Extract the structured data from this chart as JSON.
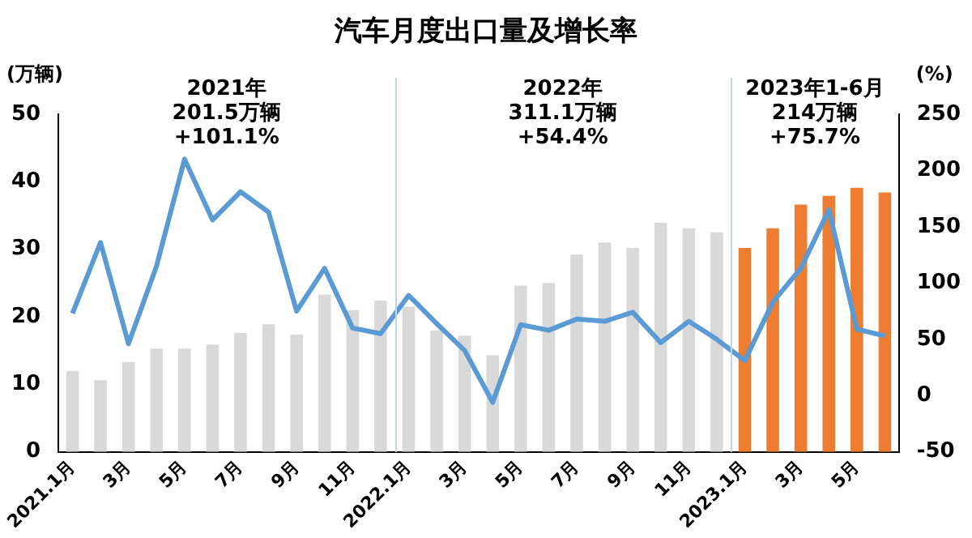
{
  "chart_data": {
    "type": "bar",
    "title": "汽车月度出口量及增长率",
    "ylabel": "(万辆)",
    "y2label": "(%)",
    "categories": [
      "2021.1月",
      null,
      "3月",
      null,
      "5月",
      null,
      "7月",
      null,
      "9月",
      null,
      "11月",
      null,
      "2022.1月",
      null,
      "3月",
      null,
      "5月",
      null,
      "7月",
      null,
      "9月",
      null,
      "11月",
      null,
      "2023.1月",
      null,
      "3月",
      null,
      "5月",
      null
    ],
    "series": [
      {
        "values": [
          12.0,
          10.6,
          13.3,
          15.3,
          15.3,
          15.9,
          17.6,
          18.9,
          17.4,
          23.3,
          21.0,
          22.4,
          21.5,
          18.0,
          17.2,
          14.3,
          24.6,
          25.0,
          29.2,
          31.0,
          30.2,
          33.9,
          33.1,
          32.5,
          30.2,
          33.1,
          36.6,
          37.9,
          39.1,
          38.4
        ],
        "colors": [
          "#d9d9d9",
          "#d9d9d9",
          "#d9d9d9",
          "#d9d9d9",
          "#d9d9d9",
          "#d9d9d9",
          "#d9d9d9",
          "#d9d9d9",
          "#d9d9d9",
          "#d9d9d9",
          "#d9d9d9",
          "#d9d9d9",
          "#d9d9d9",
          "#d9d9d9",
          "#d9d9d9",
          "#d9d9d9",
          "#d9d9d9",
          "#d9d9d9",
          "#d9d9d9",
          "#d9d9d9",
          "#d9d9d9",
          "#d9d9d9",
          "#d9d9d9",
          "#d9d9d9",
          "#ed7d31",
          "#ed7d31",
          "#ed7d31",
          "#ed7d31",
          "#ed7d31",
          "#ed7d31"
        ]
      },
      {
        "type": "line",
        "axis": "y2",
        "color": "#5b9bd5",
        "values": [
          73,
          136,
          46,
          115,
          210,
          156,
          181,
          163,
          75,
          113,
          60,
          55,
          89,
          64,
          40,
          -6,
          63,
          58,
          68,
          66,
          74,
          47,
          66,
          50,
          31,
          83,
          113,
          165,
          59,
          53
        ]
      }
    ],
    "ylim": [
      0,
      50
    ],
    "yticks": [
      0,
      10,
      20,
      30,
      40,
      50
    ],
    "y2lim": [
      -50,
      250
    ],
    "y2ticks": [
      -50,
      0,
      50,
      100,
      150,
      200,
      250
    ],
    "annotations": [
      "2021年\n201.5万辆\n+101.1%",
      "2022年\n311.1万辆\n+54.4%",
      "2023年1-6月\n214万辆\n+75.7%"
    ],
    "grid": false,
    "legend": false,
    "marker": "none",
    "line_style": "solid"
  }
}
